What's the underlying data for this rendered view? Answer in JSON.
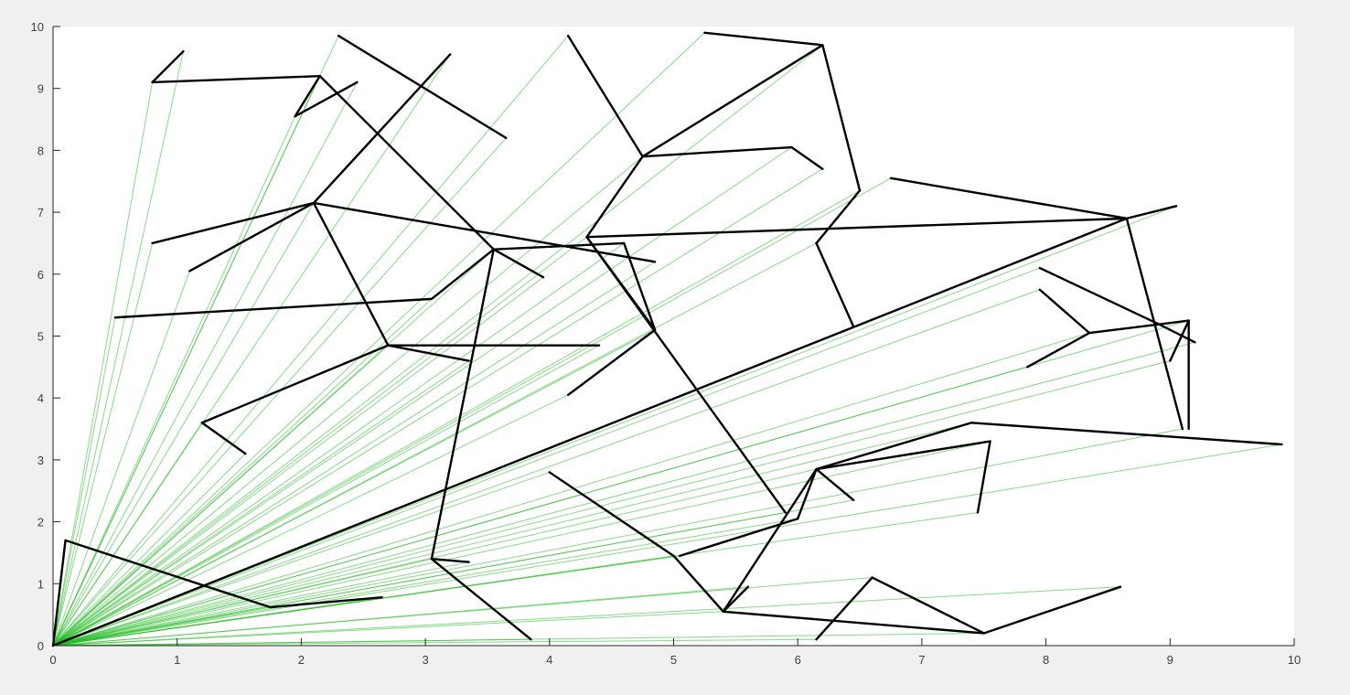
{
  "chart_data": {
    "type": "line",
    "title": "",
    "xlabel": "",
    "ylabel": "",
    "xlim": [
      0,
      10
    ],
    "ylim": [
      0,
      10
    ],
    "x_ticks": [
      0,
      1,
      2,
      3,
      4,
      5,
      6,
      7,
      8,
      9,
      10
    ],
    "y_ticks": [
      0,
      1,
      2,
      3,
      4,
      5,
      6,
      7,
      8,
      9,
      10
    ],
    "grid": false,
    "legend": "none",
    "colors": {
      "tree": "#000000",
      "rays": "#22bb22",
      "axes_bg": "#ffffff",
      "figure_bg": "#f0f0f0"
    },
    "origin": [
      0,
      0
    ],
    "nodes": [
      [
        0.1,
        1.7
      ],
      [
        1.75,
        0.62
      ],
      [
        2.65,
        0.78
      ],
      [
        0.8,
        9.1
      ],
      [
        1.05,
        9.6
      ],
      [
        2.15,
        9.2
      ],
      [
        1.95,
        8.55
      ],
      [
        2.45,
        9.1
      ],
      [
        2.3,
        9.85
      ],
      [
        3.65,
        8.2
      ],
      [
        2.1,
        7.15
      ],
      [
        0.8,
        6.5
      ],
      [
        1.1,
        6.05
      ],
      [
        3.2,
        9.55
      ],
      [
        3.55,
        6.4
      ],
      [
        3.95,
        5.95
      ],
      [
        2.7,
        4.85
      ],
      [
        3.35,
        4.6
      ],
      [
        4.4,
        4.85
      ],
      [
        1.2,
        3.6
      ],
      [
        1.55,
        3.1
      ],
      [
        0.5,
        5.3
      ],
      [
        3.05,
        5.6
      ],
      [
        3.05,
        1.4
      ],
      [
        3.35,
        1.35
      ],
      [
        3.85,
        0.1
      ],
      [
        4.3,
        6.6
      ],
      [
        4.85,
        6.2
      ],
      [
        4.15,
        9.85
      ],
      [
        4.75,
        7.9
      ],
      [
        5.95,
        8.05
      ],
      [
        6.2,
        7.7
      ],
      [
        6.2,
        9.7
      ],
      [
        5.25,
        9.9
      ],
      [
        6.5,
        7.35
      ],
      [
        6.15,
        6.5
      ],
      [
        6.45,
        5.15
      ],
      [
        4.6,
        6.5
      ],
      [
        4.85,
        5.1
      ],
      [
        4.15,
        4.05
      ],
      [
        5.9,
        2.15
      ],
      [
        6.75,
        7.55
      ],
      [
        8.65,
        6.9
      ],
      [
        9.05,
        7.1
      ],
      [
        7.95,
        6.1
      ],
      [
        9.2,
        4.9
      ],
      [
        9.15,
        5.25
      ],
      [
        9.0,
        4.6
      ],
      [
        9.1,
        3.5
      ],
      [
        7.95,
        5.75
      ],
      [
        8.35,
        5.05
      ],
      [
        7.85,
        4.5
      ],
      [
        6.15,
        2.85
      ],
      [
        6.45,
        2.35
      ],
      [
        7.55,
        3.3
      ],
      [
        7.45,
        2.15
      ],
      [
        7.4,
        3.6
      ],
      [
        9.9,
        3.25
      ],
      [
        5.05,
        1.45
      ],
      [
        4.0,
        2.8
      ],
      [
        5.0,
        1.45
      ],
      [
        5.4,
        0.55
      ],
      [
        5.6,
        0.95
      ],
      [
        7.5,
        0.2
      ],
      [
        8.6,
        0.95
      ],
      [
        6.6,
        1.1
      ],
      [
        6.15,
        0.1
      ],
      [
        6.0,
        2.05
      ]
    ],
    "tree_edges": [
      [
        [
          0,
          0
        ],
        [
          0.1,
          1.7
        ]
      ],
      [
        [
          0.1,
          1.7
        ],
        [
          1.75,
          0.62
        ]
      ],
      [
        [
          1.75,
          0.62
        ],
        [
          2.65,
          0.78
        ]
      ],
      [
        [
          0,
          0
        ],
        [
          8.65,
          6.9
        ]
      ],
      [
        [
          0.8,
          9.1
        ],
        [
          1.05,
          9.6
        ]
      ],
      [
        [
          0.8,
          9.1
        ],
        [
          2.15,
          9.2
        ]
      ],
      [
        [
          2.15,
          9.2
        ],
        [
          1.95,
          8.55
        ]
      ],
      [
        [
          1.95,
          8.55
        ],
        [
          2.45,
          9.1
        ]
      ],
      [
        [
          2.15,
          9.2
        ],
        [
          3.55,
          6.4
        ]
      ],
      [
        [
          2.3,
          9.85
        ],
        [
          3.65,
          8.2
        ]
      ],
      [
        [
          0.8,
          6.5
        ],
        [
          2.1,
          7.15
        ]
      ],
      [
        [
          1.1,
          6.05
        ],
        [
          2.1,
          7.15
        ]
      ],
      [
        [
          2.1,
          7.15
        ],
        [
          3.2,
          9.55
        ]
      ],
      [
        [
          2.1,
          7.15
        ],
        [
          4.85,
          6.2
        ]
      ],
      [
        [
          2.1,
          7.15
        ],
        [
          2.7,
          4.85
        ]
      ],
      [
        [
          2.7,
          4.85
        ],
        [
          3.35,
          4.6
        ]
      ],
      [
        [
          2.7,
          4.85
        ],
        [
          4.4,
          4.85
        ]
      ],
      [
        [
          2.7,
          4.85
        ],
        [
          1.2,
          3.6
        ]
      ],
      [
        [
          1.2,
          3.6
        ],
        [
          1.55,
          3.1
        ]
      ],
      [
        [
          0.5,
          5.3
        ],
        [
          3.05,
          5.6
        ]
      ],
      [
        [
          3.05,
          5.6
        ],
        [
          3.55,
          6.4
        ]
      ],
      [
        [
          3.55,
          6.4
        ],
        [
          3.95,
          5.95
        ]
      ],
      [
        [
          3.55,
          6.4
        ],
        [
          3.05,
          1.4
        ]
      ],
      [
        [
          3.05,
          1.4
        ],
        [
          3.35,
          1.35
        ]
      ],
      [
        [
          3.05,
          1.4
        ],
        [
          3.85,
          0.1
        ]
      ],
      [
        [
          3.55,
          6.4
        ],
        [
          4.6,
          6.5
        ]
      ],
      [
        [
          4.6,
          6.5
        ],
        [
          4.85,
          5.1
        ]
      ],
      [
        [
          4.85,
          5.1
        ],
        [
          4.15,
          4.05
        ]
      ],
      [
        [
          4.3,
          6.6
        ],
        [
          4.85,
          5.1
        ]
      ],
      [
        [
          4.3,
          6.6
        ],
        [
          5.9,
          2.15
        ]
      ],
      [
        [
          4.3,
          6.6
        ],
        [
          8.65,
          6.9
        ]
      ],
      [
        [
          4.3,
          6.6
        ],
        [
          4.75,
          7.9
        ]
      ],
      [
        [
          4.15,
          9.85
        ],
        [
          4.75,
          7.9
        ]
      ],
      [
        [
          4.75,
          7.9
        ],
        [
          5.95,
          8.05
        ]
      ],
      [
        [
          5.95,
          8.05
        ],
        [
          6.2,
          7.7
        ]
      ],
      [
        [
          4.75,
          7.9
        ],
        [
          6.2,
          9.7
        ]
      ],
      [
        [
          5.25,
          9.9
        ],
        [
          6.2,
          9.7
        ]
      ],
      [
        [
          6.2,
          9.7
        ],
        [
          6.5,
          7.35
        ]
      ],
      [
        [
          6.5,
          7.35
        ],
        [
          6.15,
          6.5
        ]
      ],
      [
        [
          6.15,
          6.5
        ],
        [
          6.45,
          5.15
        ]
      ],
      [
        [
          6.75,
          7.55
        ],
        [
          8.65,
          6.9
        ]
      ],
      [
        [
          8.65,
          6.9
        ],
        [
          9.05,
          7.1
        ]
      ],
      [
        [
          8.65,
          6.9
        ],
        [
          9.1,
          3.5
        ]
      ],
      [
        [
          7.95,
          6.1
        ],
        [
          8.9,
          5.2
        ]
      ],
      [
        [
          8.9,
          5.2
        ],
        [
          9.2,
          4.9
        ]
      ],
      [
        [
          8.35,
          5.05
        ],
        [
          9.15,
          5.25
        ]
      ],
      [
        [
          9.15,
          5.25
        ],
        [
          9.0,
          4.6
        ]
      ],
      [
        [
          9.15,
          5.25
        ],
        [
          9.15,
          3.5
        ]
      ],
      [
        [
          7.95,
          5.75
        ],
        [
          8.35,
          5.05
        ]
      ],
      [
        [
          8.35,
          5.05
        ],
        [
          7.85,
          4.5
        ]
      ],
      [
        [
          5.05,
          1.45
        ],
        [
          6.0,
          2.05
        ]
      ],
      [
        [
          6.0,
          2.05
        ],
        [
          6.15,
          2.85
        ]
      ],
      [
        [
          6.15,
          2.85
        ],
        [
          6.45,
          2.35
        ]
      ],
      [
        [
          6.15,
          2.85
        ],
        [
          7.55,
          3.3
        ]
      ],
      [
        [
          7.55,
          3.3
        ],
        [
          7.45,
          2.15
        ]
      ],
      [
        [
          6.15,
          2.85
        ],
        [
          7.4,
          3.6
        ]
      ],
      [
        [
          7.4,
          3.6
        ],
        [
          9.9,
          3.25
        ]
      ],
      [
        [
          4.0,
          2.8
        ],
        [
          5.0,
          1.45
        ]
      ],
      [
        [
          5.0,
          1.45
        ],
        [
          5.4,
          0.55
        ]
      ],
      [
        [
          5.4,
          0.55
        ],
        [
          6.15,
          2.85
        ]
      ],
      [
        [
          5.4,
          0.55
        ],
        [
          5.6,
          0.95
        ]
      ],
      [
        [
          5.4,
          0.55
        ],
        [
          7.5,
          0.2
        ]
      ],
      [
        [
          7.5,
          0.2
        ],
        [
          8.6,
          0.95
        ]
      ],
      [
        [
          7.5,
          0.2
        ],
        [
          6.6,
          1.1
        ]
      ],
      [
        [
          6.6,
          1.1
        ],
        [
          6.15,
          0.1
        ]
      ]
    ]
  }
}
